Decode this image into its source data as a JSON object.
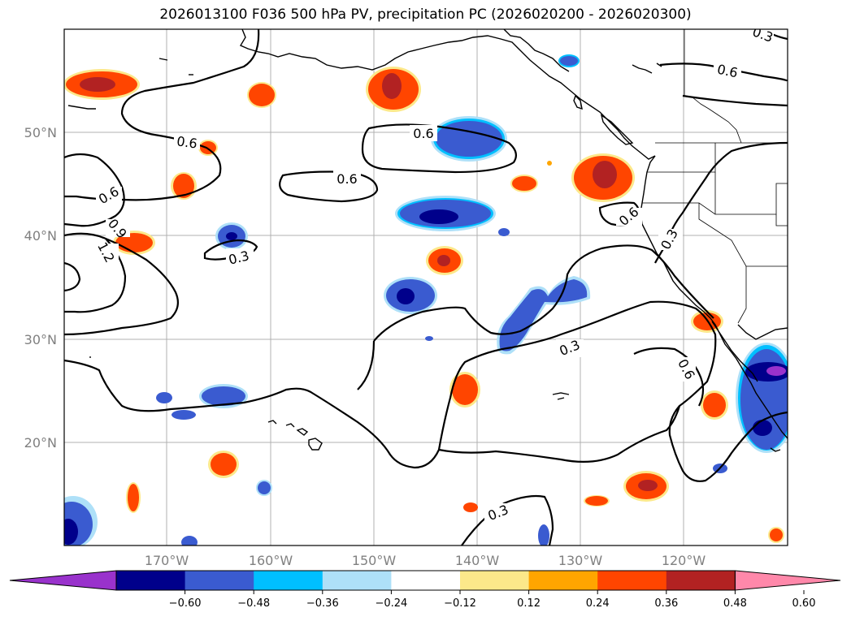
{
  "title": "2026013100 F036 500 hPa PV, precipitation PC (2026020200 - 2026020300)",
  "lon_labels": [
    "170°W",
    "160°W",
    "150°W",
    "140°W",
    "130°W",
    "120°W"
  ],
  "lat_labels": [
    "50°N",
    "40°N",
    "30°N",
    "20°N"
  ],
  "contour_labels": [
    "0.6",
    "0.6",
    "0.6",
    "0.6",
    "0.6",
    "0.9",
    "1.2",
    "0.3",
    "0.3",
    "0.6",
    "0.3",
    "0.3",
    "0.6",
    "0.3"
  ],
  "colorbar": {
    "ticks": [
      "−0.60",
      "−0.48",
      "−0.36",
      "−0.24",
      "−0.12",
      "0.12",
      "0.24",
      "0.36",
      "0.48",
      "0.60"
    ],
    "colors": [
      "#9932cc",
      "#00008b",
      "#3a5bd0",
      "#00bfff",
      "#aee0f8",
      "#ffffff",
      "#fce88a",
      "#ffa500",
      "#ff4500",
      "#b22222",
      "#ff88aa"
    ]
  },
  "fill_colors": {
    "red_dark": "#b22222",
    "red": "#ff4500",
    "orange": "#ffa500",
    "yellow": "#fce88a",
    "blue_dark": "#00008b",
    "blue": "#3a5bd0",
    "cyan": "#00bfff",
    "light_blue": "#aee0f8",
    "purple": "#9932cc"
  }
}
